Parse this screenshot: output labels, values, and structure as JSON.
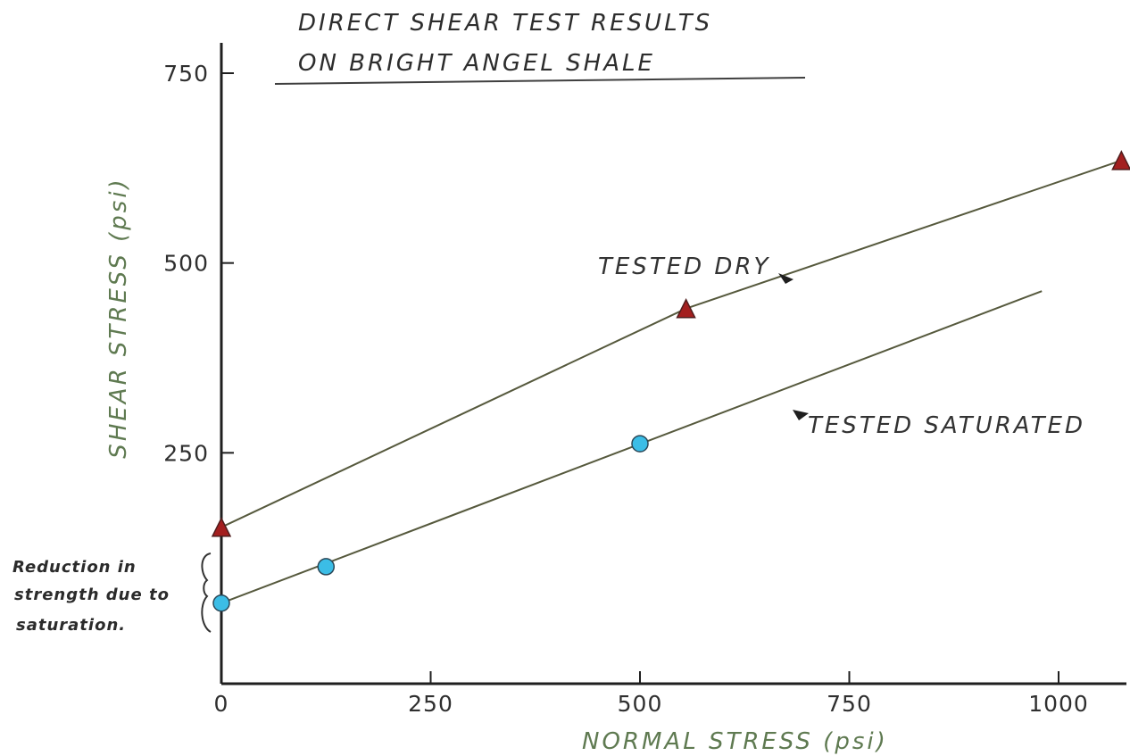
{
  "colors": {
    "axis": "#1f1f1f",
    "line": "#56593d",
    "dry_marker": "#a31f1f",
    "saturated_marker": "#3bbde6",
    "axis_label": "#5f7a51",
    "text": "#2f2f2f"
  },
  "chart_data": {
    "type": "scatter",
    "title_lines": [
      "DIRECT SHEAR TEST RESULTS",
      "ON BRIGHT ANGEL SHALE"
    ],
    "xlabel": "NORMAL STRESS (psi)",
    "ylabel": "SHEAR STRESS (psi)",
    "xlim": [
      0,
      1100
    ],
    "ylim": [
      0,
      800
    ],
    "x_ticks": [
      0,
      250,
      500,
      750,
      1000
    ],
    "y_ticks": [
      250,
      500,
      750
    ],
    "grid": false,
    "series": [
      {
        "name": "TESTED DRY",
        "marker": "triangle",
        "points": [
          {
            "x": 0,
            "y": 152
          },
          {
            "x": 555,
            "y": 440
          },
          {
            "x": 1075,
            "y": 635
          }
        ],
        "line": [
          {
            "x": 0,
            "y": 152
          },
          {
            "x": 555,
            "y": 440
          },
          {
            "x": 1075,
            "y": 635
          }
        ]
      },
      {
        "name": "TESTED SATURATED",
        "marker": "circle",
        "points": [
          {
            "x": 0,
            "y": 52
          },
          {
            "x": 125,
            "y": 100
          },
          {
            "x": 500,
            "y": 262
          }
        ],
        "line": [
          {
            "x": 0,
            "y": 52
          },
          {
            "x": 980,
            "y": 463
          }
        ]
      }
    ],
    "annotations": {
      "reduction_lines": [
        "Reduction in",
        "strength due to",
        "saturation."
      ]
    }
  }
}
